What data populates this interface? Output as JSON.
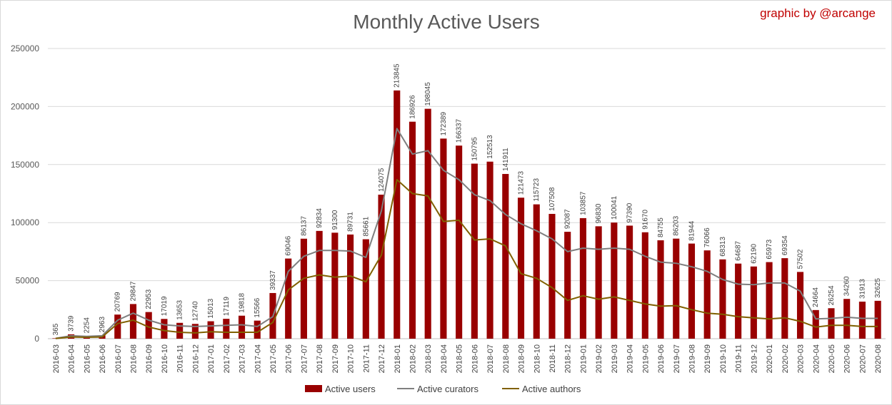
{
  "chart_data": {
    "type": "bar",
    "title": "Monthly Active Users",
    "credit": "graphic by @arcange",
    "xlabel": "",
    "ylabel": "",
    "ylim": [
      0,
      250000
    ],
    "yticks": [
      0,
      50000,
      100000,
      150000,
      200000,
      250000
    ],
    "ytick_labels": [
      "0",
      "50000",
      "100000",
      "150000",
      "200000",
      "250000"
    ],
    "grid": true,
    "legend_position": "bottom",
    "categories": [
      "2016-03",
      "2016-04",
      "2016-05",
      "2016-06",
      "2016-07",
      "2016-08",
      "2016-09",
      "2016-10",
      "2016-11",
      "2016-12",
      "2017-01",
      "2017-02",
      "2017-03",
      "2017-04",
      "2017-05",
      "2017-06",
      "2017-07",
      "2017-08",
      "2017-09",
      "2017-10",
      "2017-11",
      "2017-12",
      "2018-01",
      "2018-02",
      "2018-03",
      "2018-04",
      "2018-05",
      "2018-06",
      "2018-07",
      "2018-08",
      "2018-09",
      "2018-10",
      "2018-11",
      "2018-12",
      "2019-01",
      "2019-02",
      "2019-03",
      "2019-04",
      "2019-05",
      "2019-06",
      "2019-07",
      "2019-08",
      "2019-09",
      "2019-10",
      "2019-11",
      "2019-12",
      "2020-01",
      "2020-02",
      "2020-03",
      "2020-04",
      "2020-05",
      "2020-06",
      "2020-07",
      "2020-08"
    ],
    "series": [
      {
        "name": "Active users",
        "type": "bar",
        "color": "#990000",
        "values": [
          365,
          3739,
          2254,
          2963,
          20769,
          29847,
          22953,
          17019,
          13653,
          12740,
          15013,
          17119,
          19818,
          15566,
          39337,
          69046,
          86137,
          92834,
          91300,
          89731,
          85661,
          124075,
          213845,
          186926,
          198045,
          172389,
          166337,
          150795,
          152513,
          141911,
          121473,
          115723,
          107508,
          92087,
          103857,
          96830,
          100041,
          97390,
          91670,
          84755,
          86203,
          81944,
          76066,
          68313,
          64687,
          62190,
          65973,
          69354,
          57502,
          24664,
          26254,
          34260,
          31913,
          32625
        ]
      },
      {
        "name": "Active curators",
        "type": "line",
        "color": "#7f7f7f",
        "values": [
          300,
          2500,
          2000,
          2500,
          16000,
          22000,
          16000,
          12000,
          11000,
          10500,
          11000,
          11500,
          12000,
          10500,
          19000,
          58000,
          71000,
          76000,
          76000,
          75500,
          70000,
          110000,
          181000,
          159000,
          162000,
          145000,
          137000,
          124000,
          119000,
          107000,
          99000,
          93000,
          86000,
          75000,
          78000,
          77000,
          78000,
          77000,
          71000,
          66000,
          65000,
          62000,
          58000,
          51000,
          47000,
          46500,
          48000,
          48000,
          41000,
          17000,
          17500,
          18500,
          17500,
          17500
        ]
      },
      {
        "name": "Active authors",
        "type": "line",
        "color": "#806000",
        "values": [
          200,
          1500,
          1200,
          1500,
          13000,
          16000,
          10000,
          7000,
          5500,
          5000,
          6000,
          5500,
          5500,
          5500,
          14000,
          42000,
          52000,
          55000,
          53000,
          54000,
          49000,
          72000,
          137000,
          125000,
          123000,
          101000,
          102000,
          85000,
          86000,
          80000,
          56000,
          52000,
          44000,
          33000,
          37000,
          34000,
          36000,
          33000,
          30000,
          28000,
          28500,
          25000,
          22000,
          21000,
          19000,
          18000,
          17000,
          18000,
          15000,
          10000,
          11500,
          11500,
          10500,
          10500
        ]
      }
    ]
  }
}
